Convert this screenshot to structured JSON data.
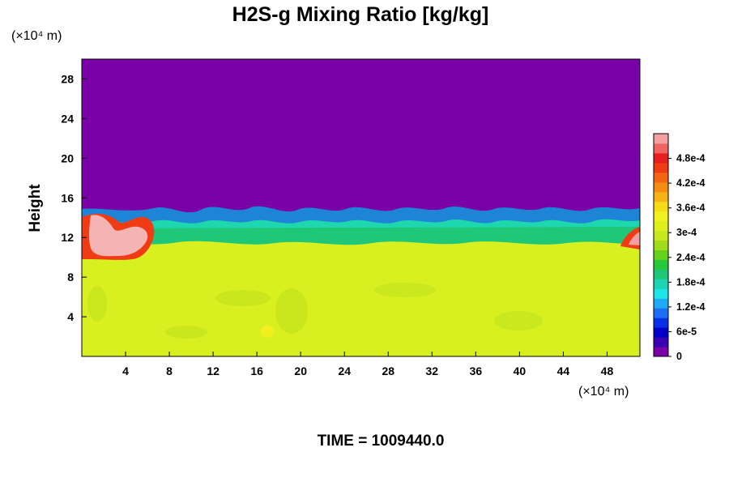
{
  "chart_data": {
    "type": "heatmap",
    "title": "H2S-g Mixing Ratio [kg/kg]",
    "xlabel": "",
    "ylabel": "Height",
    "x_unit": "(×10⁴ m)",
    "y_unit": "(×10⁴ m)",
    "xlim": [
      0,
      51
    ],
    "ylim": [
      0,
      30
    ],
    "x_ticks": [
      4,
      8,
      12,
      16,
      20,
      24,
      28,
      32,
      36,
      40,
      44,
      48
    ],
    "y_ticks": [
      4,
      8,
      12,
      16,
      20,
      24,
      28
    ],
    "colorbar": {
      "range": [
        0,
        0.00054
      ],
      "tick_values": [
        0,
        6e-05,
        0.00012,
        0.00018,
        0.00024,
        0.0003,
        0.00036,
        0.00042,
        0.00048
      ],
      "tick_labels": [
        "0",
        "6e-5",
        "1.2e-4",
        "1.8e-4",
        "2.4e-4",
        "3e-4",
        "3.6e-4",
        "4.2e-4",
        "4.8e-4"
      ],
      "colors": [
        "#7a00a8",
        "#3c00b4",
        "#0000c8",
        "#0a2ee6",
        "#1e6ef5",
        "#1eaaf5",
        "#1ee6e6",
        "#1ed2b4",
        "#1ec878",
        "#28c83c",
        "#64d21e",
        "#a0dc1e",
        "#c8e61e",
        "#dcf01e",
        "#f0f01e",
        "#f5dc14",
        "#f5b414",
        "#f58c14",
        "#f56414",
        "#f03c14",
        "#e61e1e",
        "#f06464",
        "#f5a0a0"
      ]
    },
    "regions": [
      {
        "name": "upper",
        "value": 0,
        "y_range": [
          15,
          30
        ],
        "color": "#7a00a8"
      },
      {
        "name": "mixing-layer",
        "value": 0.0002,
        "y_range": [
          11,
          15
        ],
        "color": "#1ec878"
      },
      {
        "name": "lower",
        "value": 0.00033,
        "y_range": [
          0,
          11
        ],
        "color": "#d8f020"
      },
      {
        "name": "plume-left",
        "value": 0.00054,
        "x_range": [
          1,
          7
        ],
        "y_range": [
          10,
          14.5
        ],
        "color": "#f5b4b4"
      },
      {
        "name": "plume-right",
        "value": 0.0005,
        "x_range": [
          49,
          51
        ],
        "y_range": [
          11,
          13
        ],
        "color": "#f03c14"
      }
    ],
    "grid": false,
    "legend": "colorbar-right"
  },
  "footer": {
    "time_label": "TIME = 1009440.0"
  }
}
